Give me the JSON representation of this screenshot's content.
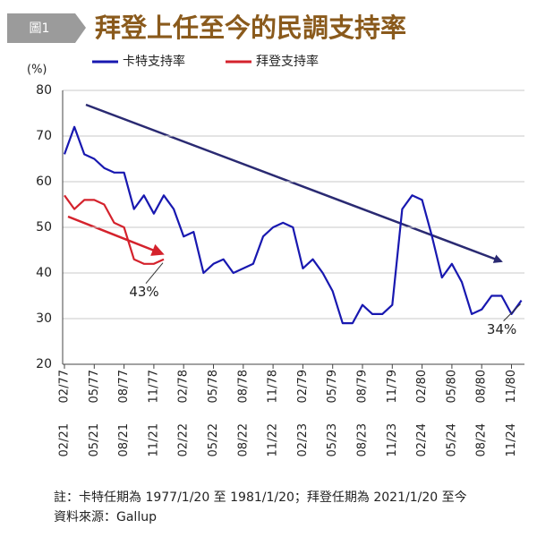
{
  "badge": "圖1",
  "chart_data": {
    "type": "line",
    "title": "拜登上任至今的民調支持率",
    "y_label": "(%)",
    "categories": [
      "02/77",
      null,
      null,
      "05/77",
      null,
      null,
      "08/77",
      null,
      null,
      "11/77",
      null,
      null,
      "02/78",
      null,
      null,
      "05/78",
      null,
      null,
      "08/78",
      null,
      null,
      "11/78",
      null,
      null,
      "02/79",
      null,
      null,
      "05/79",
      null,
      null,
      "08/79",
      null,
      null,
      "11/79",
      null,
      null,
      "02/80",
      null,
      null,
      "05/80",
      null,
      null,
      "08/80",
      null,
      null,
      "11/80",
      null
    ],
    "secondary_categories": [
      "02/21",
      null,
      null,
      "05/21",
      null,
      null,
      "08/21",
      null,
      null,
      "11/21",
      null,
      null,
      "02/22",
      null,
      null,
      "05/22",
      null,
      null,
      "08/22",
      null,
      null,
      "11/22",
      null,
      null,
      "02/23",
      null,
      null,
      "05/23",
      null,
      null,
      "08/23",
      null,
      null,
      "11/23",
      null,
      null,
      "02/24",
      null,
      null,
      "05/24",
      null,
      null,
      "08/24",
      null,
      null,
      "11/24",
      null
    ],
    "series": [
      {
        "name": "卡特支持率",
        "color": "#1818b0",
        "values": [
          66,
          72,
          66,
          65,
          63,
          62,
          62,
          54,
          57,
          53,
          57,
          54,
          48,
          49,
          40,
          42,
          43,
          40,
          41,
          42,
          48,
          50,
          51,
          50,
          41,
          43,
          40,
          36,
          29,
          29,
          33,
          31,
          31,
          33,
          54,
          57,
          56,
          48,
          39,
          42,
          38,
          31,
          32,
          35,
          35,
          31,
          34
        ]
      },
      {
        "name": "拜登支持率",
        "color": "#d4222c",
        "values": [
          57,
          54,
          56,
          56,
          55,
          51,
          50,
          43,
          42,
          42,
          43,
          null,
          null,
          null,
          null,
          null,
          null,
          null,
          null,
          null,
          null,
          null,
          null,
          null,
          null,
          null,
          null,
          null,
          null,
          null,
          null,
          null,
          null,
          null,
          null,
          null,
          null,
          null,
          null,
          null,
          null,
          null,
          null,
          null,
          null,
          null,
          null
        ]
      }
    ],
    "annotations": [
      {
        "text": "43%",
        "series": 1,
        "index": 10
      },
      {
        "text": "34%",
        "series": 0,
        "index": 46
      }
    ],
    "ylim": [
      20,
      80
    ],
    "yticks": [
      20,
      30,
      40,
      50,
      60,
      70,
      80
    ],
    "grid": true,
    "legend": "top-left"
  },
  "notes": [
    "註：卡特任期為 1977/1/20 至 1981/1/20；拜登任期為 2021/1/20 至今",
    "資料來源：Gallup"
  ]
}
